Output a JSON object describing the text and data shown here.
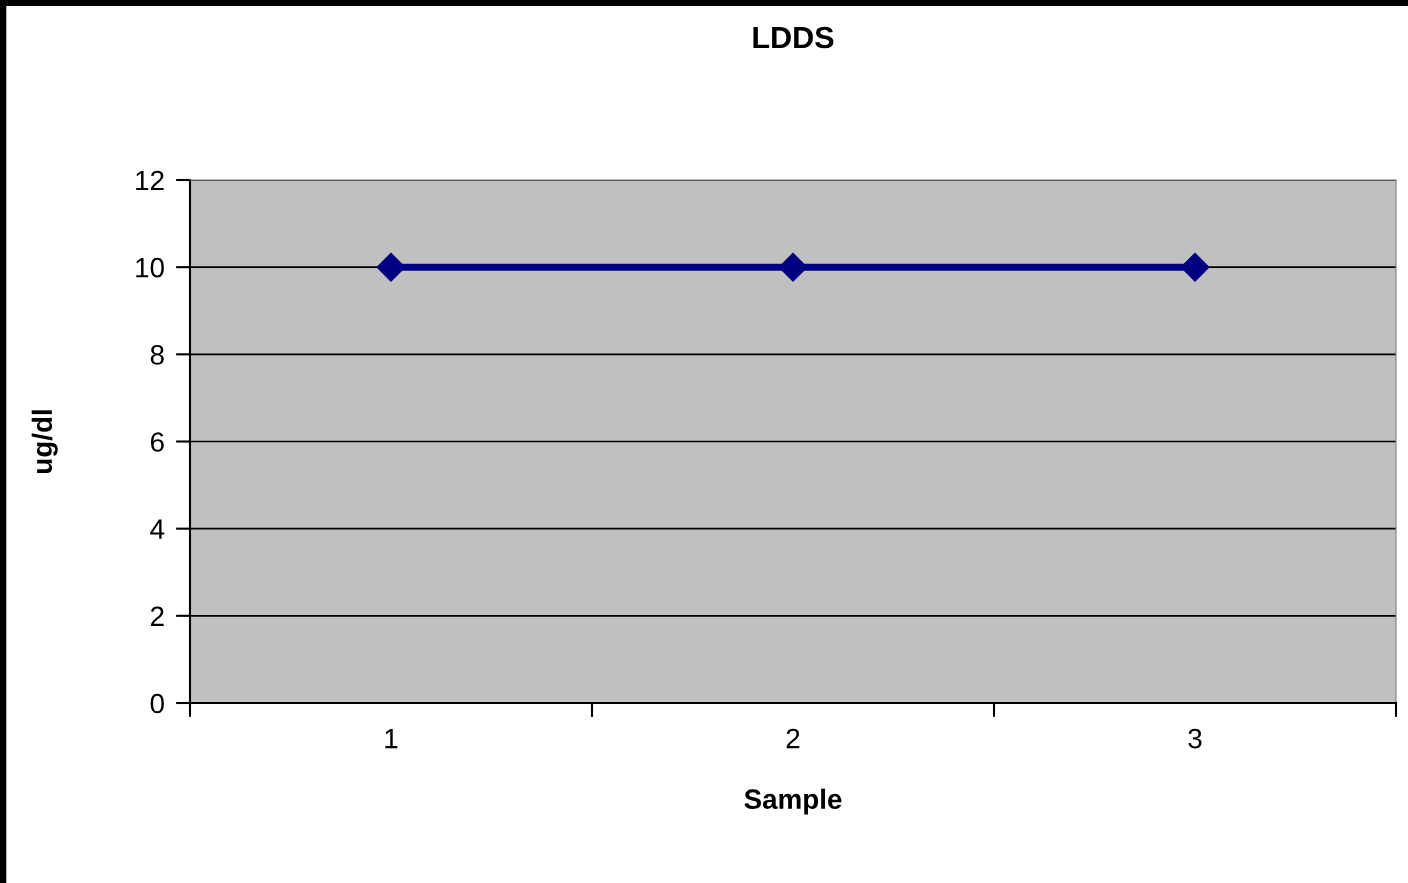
{
  "chart_data": {
    "type": "line",
    "title": "LDDS",
    "xlabel": "Sample",
    "ylabel": "ug/dl",
    "categories": [
      "1",
      "2",
      "3"
    ],
    "series": [
      {
        "color": "#000080",
        "values": [
          10,
          10,
          10
        ]
      }
    ],
    "ylim": [
      0,
      12
    ],
    "yticks": [
      0,
      2,
      4,
      6,
      8,
      10,
      12
    ],
    "grid": "y",
    "marker": "diamond",
    "line_style": "solid"
  }
}
